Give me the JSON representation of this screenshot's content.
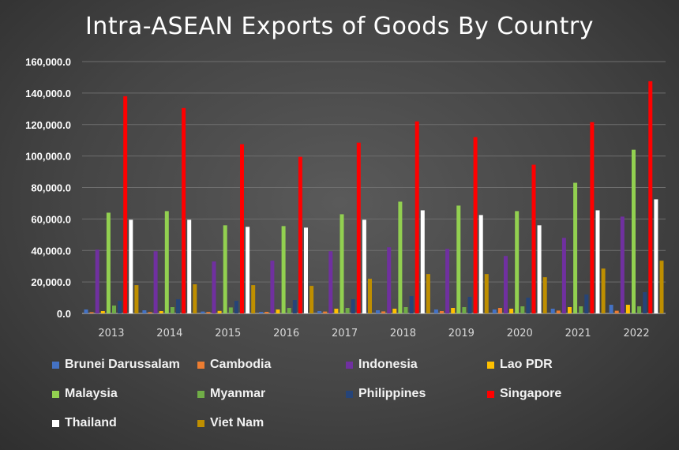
{
  "chart_data": {
    "type": "bar",
    "title": "Intra-ASEAN Exports of Goods By Country",
    "xlabel": "",
    "ylabel": "",
    "ylim": [
      0,
      160000
    ],
    "yticks": [
      "0.0",
      "20,000.0",
      "40,000.0",
      "60,000.0",
      "80,000.0",
      "100,000.0",
      "120,000.0",
      "140,000.0",
      "160,000.0"
    ],
    "ytick_values": [
      0,
      20000,
      40000,
      60000,
      80000,
      100000,
      120000,
      140000,
      160000
    ],
    "grid": true,
    "legend_position": "bottom",
    "categories": [
      "2013",
      "2014",
      "2015",
      "2016",
      "2017",
      "2018",
      "2019",
      "2020",
      "2021",
      "2022"
    ],
    "series": [
      {
        "name": "Brunei Darussalam",
        "color": "#4472c4",
        "values": [
          2500,
          2000,
          1200,
          1000,
          1500,
          2000,
          2500,
          2500,
          3000,
          5500
        ]
      },
      {
        "name": "Cambodia",
        "color": "#ed7d31",
        "values": [
          800,
          800,
          900,
          1000,
          1200,
          1300,
          1500,
          3500,
          1800,
          1700
        ]
      },
      {
        "name": "Indonesia",
        "color": "#7030a0",
        "values": [
          40500,
          39500,
          33000,
          33500,
          39500,
          42000,
          41000,
          36500,
          48000,
          61500
        ]
      },
      {
        "name": "Lao PDR",
        "color": "#ffc000",
        "values": [
          1500,
          1500,
          1600,
          2500,
          3000,
          3000,
          3500,
          3000,
          4000,
          5500
        ]
      },
      {
        "name": "Malaysia",
        "color": "#92d050",
        "values": [
          64000,
          65000,
          56000,
          55500,
          63000,
          71000,
          68500,
          65000,
          83000,
          104000
        ]
      },
      {
        "name": "Myanmar",
        "color": "#70ad47",
        "values": [
          5000,
          4000,
          3800,
          3500,
          3500,
          4000,
          4000,
          4500,
          4500,
          4500
        ]
      },
      {
        "name": "Philippines",
        "color": "#264478",
        "values": [
          8000,
          9000,
          8000,
          8500,
          9000,
          11000,
          10500,
          10000,
          12000,
          13500
        ]
      },
      {
        "name": "Singapore",
        "color": "#ff0000",
        "values": [
          138000,
          130500,
          107500,
          99500,
          108500,
          122000,
          112000,
          94500,
          121500,
          147500
        ]
      },
      {
        "name": "Thailand",
        "color": "#ffffff",
        "values": [
          59500,
          59500,
          55000,
          54500,
          59500,
          65500,
          62500,
          56000,
          65500,
          72500
        ]
      },
      {
        "name": "Viet Nam",
        "color": "#bf8f00",
        "values": [
          18000,
          18500,
          18000,
          17500,
          22000,
          25000,
          25000,
          23000,
          28500,
          33500
        ]
      }
    ]
  }
}
